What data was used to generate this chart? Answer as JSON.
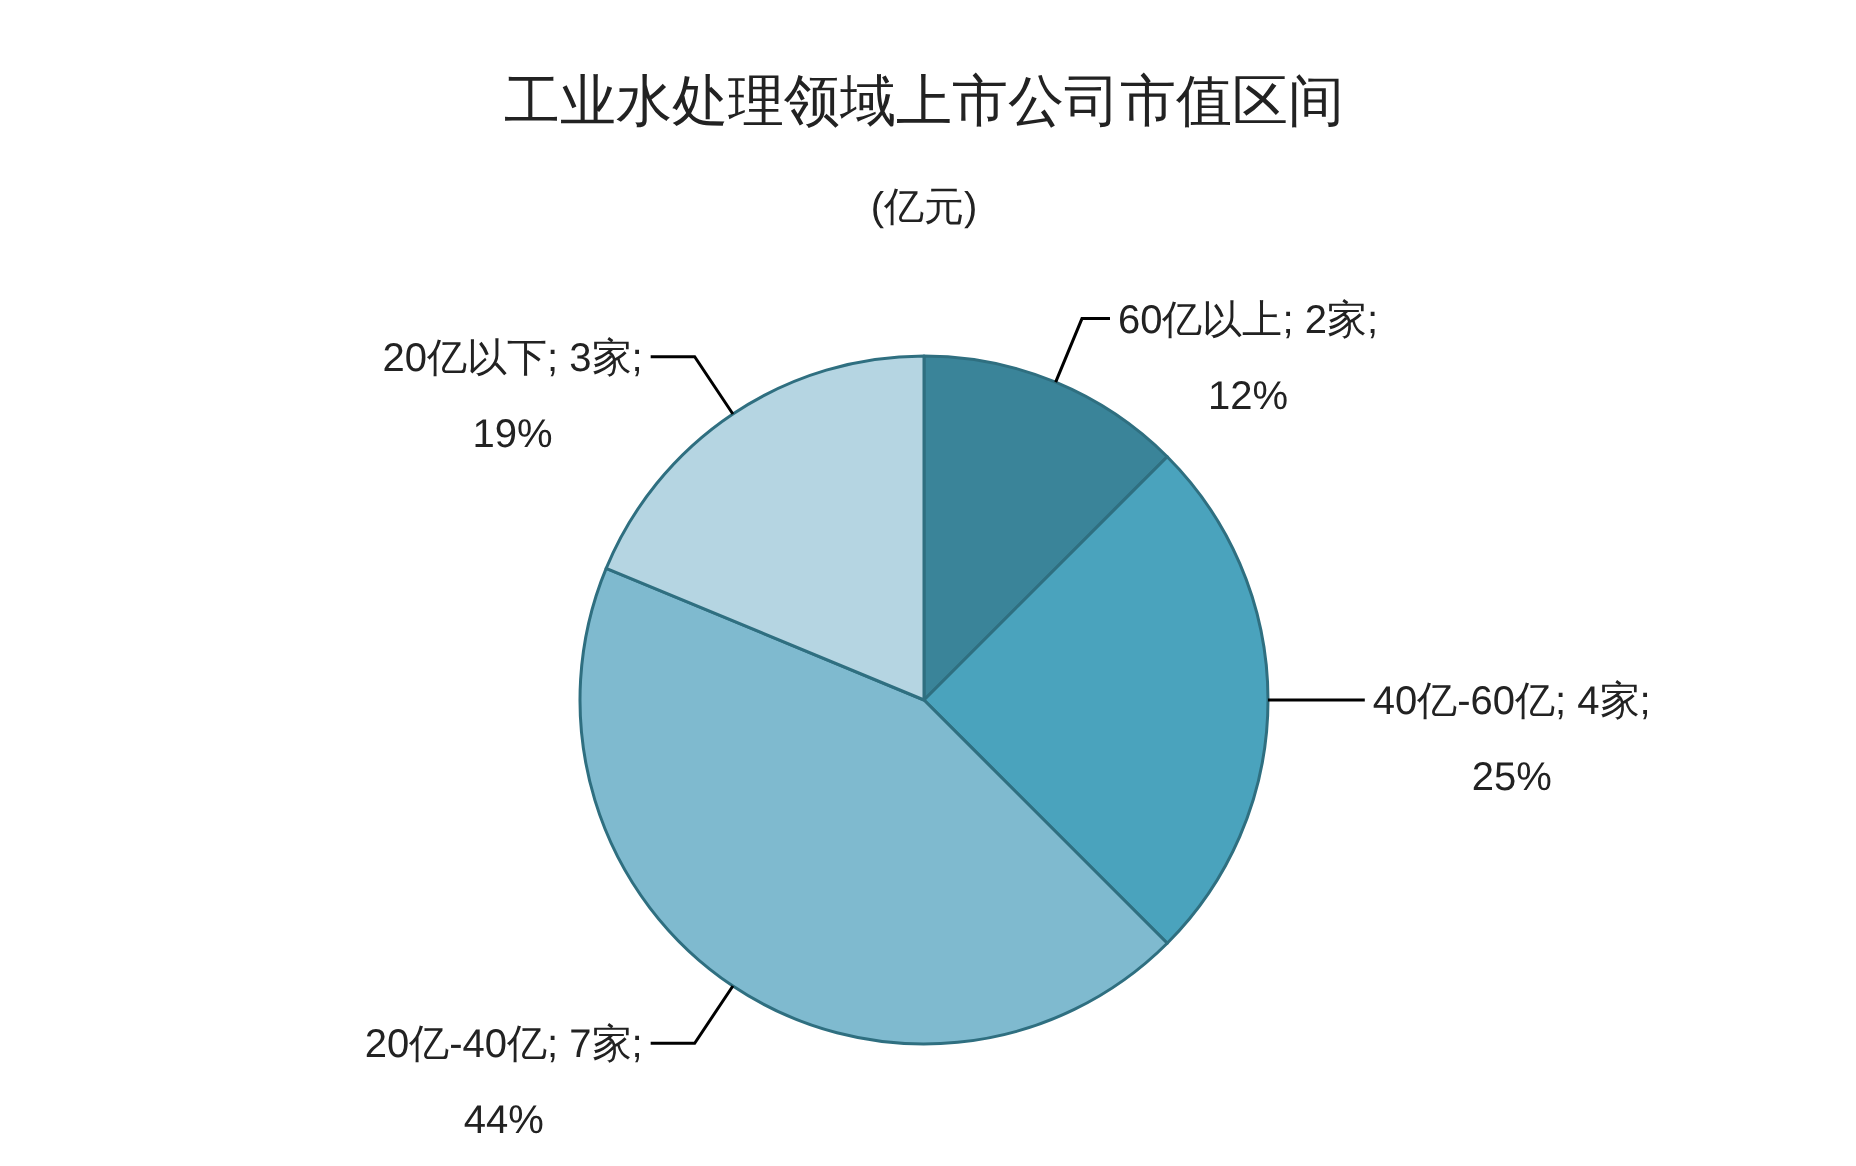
{
  "chart_data": {
    "type": "pie",
    "title": "工业水处理领域上市公司市值区间",
    "subtitle": "(亿元)",
    "categories": [
      "60亿以上",
      "40亿-60亿",
      "20亿-40亿",
      "20亿以下"
    ],
    "values": [
      2,
      4,
      7,
      3
    ],
    "value_labels": [
      "2家;\n12%",
      "4家;\n25%",
      "7家;\n44%",
      "3家;\n19%"
    ],
    "colors": [
      "#3a8499",
      "#4aa3bd",
      "#7fbacf",
      "#b5d5e2"
    ]
  }
}
